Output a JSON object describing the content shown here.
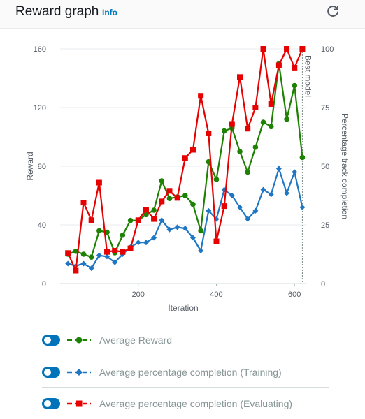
{
  "header": {
    "title": "Reward graph",
    "info_label": "Info",
    "refresh_icon": "refresh-icon"
  },
  "colors": {
    "reward": "#1d8102",
    "training": "#1f77c4",
    "evaluating": "#e60000",
    "toggle": "#0073bb",
    "best_model_line": "#7f8c8d"
  },
  "legend": [
    {
      "label": "Average Reward",
      "marker": "circle",
      "color": "#1d8102"
    },
    {
      "label": "Average percentage completion (Training)",
      "marker": "diamond",
      "color": "#1f77c4"
    },
    {
      "label": "Average percentage completion (Evaluating)",
      "marker": "square",
      "color": "#e60000"
    }
  ],
  "chart_data": {
    "type": "line",
    "xlabel": "Iteration",
    "ylabel": "Reward",
    "y2label": "Percentage track completion",
    "xlim": [
      0,
      630
    ],
    "ylim": [
      0,
      160
    ],
    "y2lim": [
      0,
      100
    ],
    "xticks": [
      200,
      400,
      600
    ],
    "yticks": [
      0,
      40,
      80,
      120,
      160
    ],
    "y2ticks": [
      0,
      25,
      50,
      75,
      100
    ],
    "grid": true,
    "annotation": {
      "label": "Best model",
      "x": 620
    },
    "series": [
      {
        "name": "Average Reward",
        "axis": "left",
        "x": [
          20,
          40,
          60,
          80,
          100,
          120,
          140,
          160,
          180,
          200,
          220,
          240,
          260,
          280,
          300,
          320,
          340,
          360,
          380,
          400,
          420,
          440,
          460,
          480,
          500,
          520,
          540,
          560,
          580,
          600,
          620
        ],
        "values": [
          20,
          22,
          20,
          18,
          36,
          35,
          21,
          33,
          43,
          43,
          47,
          50,
          70,
          58,
          59,
          60,
          54,
          36,
          83,
          71,
          104,
          106,
          90,
          76,
          93,
          110,
          107,
          150,
          112,
          135,
          86
        ]
      },
      {
        "name": "Average percentage completion (Training)",
        "axis": "right",
        "x": [
          20,
          40,
          60,
          80,
          100,
          120,
          140,
          160,
          180,
          200,
          220,
          240,
          260,
          280,
          300,
          320,
          340,
          360,
          380,
          400,
          420,
          440,
          460,
          480,
          500,
          520,
          540,
          560,
          580,
          600,
          620
        ],
        "values": [
          8.5,
          7.5,
          8.5,
          6.5,
          12,
          11.5,
          9,
          12.5,
          15.5,
          17.5,
          17.5,
          19.5,
          27,
          23,
          24,
          23.5,
          19.5,
          14,
          31,
          27.5,
          40,
          37.5,
          32.5,
          27.5,
          31,
          40,
          38,
          49,
          38.5,
          47.5,
          32.5
        ]
      },
      {
        "name": "Average percentage completion (Evaluating)",
        "axis": "right",
        "x": [
          20,
          40,
          60,
          80,
          100,
          120,
          140,
          160,
          180,
          200,
          220,
          240,
          260,
          280,
          300,
          320,
          340,
          360,
          380,
          400,
          420,
          440,
          460,
          480,
          500,
          520,
          540,
          560,
          580,
          600,
          620
        ],
        "values": [
          13,
          5.5,
          34.5,
          27,
          43,
          13.5,
          14,
          13.5,
          15,
          27,
          31.5,
          27.5,
          35,
          39.5,
          36.5,
          53.5,
          57,
          80,
          64,
          18,
          33,
          68,
          88,
          66,
          75,
          100,
          76.5,
          93,
          100,
          92,
          100
        ]
      }
    ]
  }
}
